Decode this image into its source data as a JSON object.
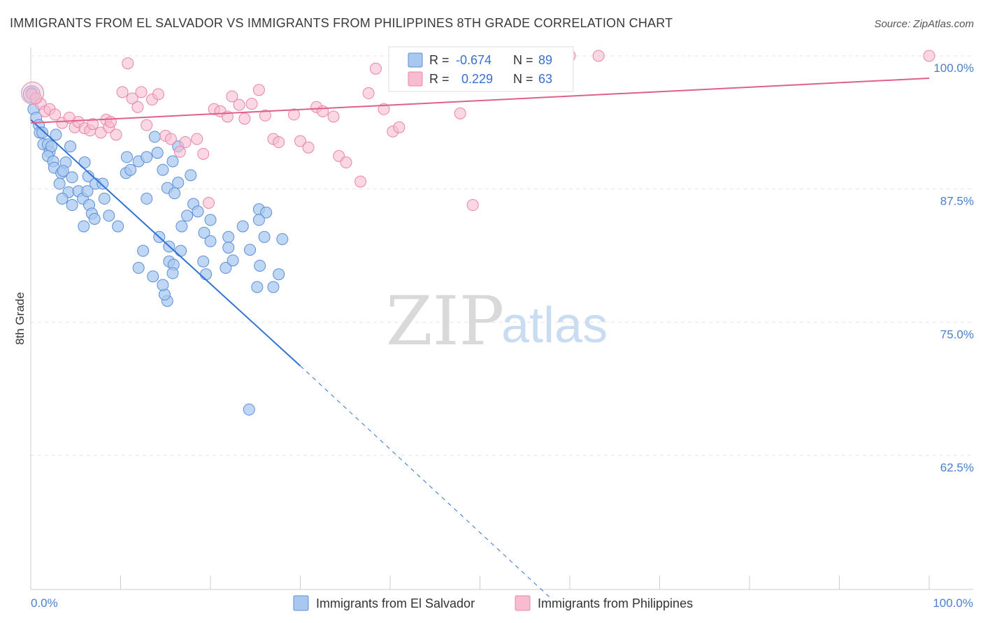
{
  "title": "IMMIGRANTS FROM EL SALVADOR VS IMMIGRANTS FROM PHILIPPINES 8TH GRADE CORRELATION CHART",
  "source": "Source: ZipAtlas.com",
  "watermark": {
    "zip": "ZIP",
    "atlas": "atlas"
  },
  "colors": {
    "blue_fill": "#a9c8f0",
    "blue_stroke": "#5b8fd6",
    "blue_line": "#2f72d2",
    "pink_fill": "#f7bcd0",
    "pink_stroke": "#e886a8",
    "pink_line": "#e0608b",
    "tick_text": "#4a7fd0",
    "grid": "#e3e3e3"
  },
  "legend": {
    "rows": [
      {
        "r_label": "R =",
        "r_value": "-0.674",
        "n_label": "N =",
        "n_value": "89"
      },
      {
        "r_label": "R =",
        "r_value": "0.229",
        "n_label": "N =",
        "n_value": "63"
      }
    ]
  },
  "bottom_legend": [
    "Immigrants from El Salvador",
    "Immigrants from Philippines"
  ],
  "chart_data": {
    "type": "scatter",
    "title": "IMMIGRANTS FROM EL SALVADOR VS IMMIGRANTS FROM PHILIPPINES 8TH GRADE CORRELATION CHART",
    "xlabel": "",
    "ylabel": "8th Grade",
    "xlim": [
      0,
      100
    ],
    "ylim": [
      51,
      102
    ],
    "x_tick_labels": [
      "0.0%",
      "100.0%"
    ],
    "y_ticks": [
      62.5,
      75.0,
      87.5,
      100.0
    ],
    "y_tick_labels": [
      "62.5%",
      "75.0%",
      "87.5%",
      "100.0%"
    ],
    "grid": true,
    "legend_position": "top-center",
    "series": [
      {
        "name": "Immigrants from El Salvador",
        "color": "#a9c8f0",
        "trend": {
          "x": [
            0,
            30
          ],
          "y": [
            94.0,
            70.9
          ],
          "dashed_to": [
            58,
            49
          ]
        },
        "points": [
          [
            0.1,
            96.5
          ],
          [
            0.3,
            95.0
          ],
          [
            0.6,
            94.2
          ],
          [
            0.9,
            93.5
          ],
          [
            1.0,
            92.8
          ],
          [
            1.3,
            92.8
          ],
          [
            1.4,
            91.7
          ],
          [
            1.9,
            91.7
          ],
          [
            2.1,
            91.0
          ],
          [
            2.3,
            91.5
          ],
          [
            1.9,
            90.6
          ],
          [
            2.8,
            92.6
          ],
          [
            2.5,
            90.1
          ],
          [
            4.4,
            91.5
          ],
          [
            3.9,
            90.0
          ],
          [
            2.6,
            89.5
          ],
          [
            3.4,
            89.0
          ],
          [
            3.6,
            89.2
          ],
          [
            4.6,
            88.6
          ],
          [
            6.0,
            90.0
          ],
          [
            6.4,
            88.7
          ],
          [
            3.2,
            88.0
          ],
          [
            4.2,
            87.2
          ],
          [
            5.3,
            87.3
          ],
          [
            5.8,
            86.6
          ],
          [
            6.3,
            87.3
          ],
          [
            7.2,
            88.0
          ],
          [
            8.0,
            88.0
          ],
          [
            3.5,
            86.6
          ],
          [
            4.6,
            86.0
          ],
          [
            6.5,
            86.0
          ],
          [
            6.8,
            85.2
          ],
          [
            8.2,
            86.6
          ],
          [
            8.7,
            85.0
          ],
          [
            7.1,
            84.7
          ],
          [
            5.9,
            84.0
          ],
          [
            9.7,
            84.0
          ],
          [
            10.6,
            89.0
          ],
          [
            11.1,
            89.3
          ],
          [
            12.0,
            90.1
          ],
          [
            10.7,
            90.5
          ],
          [
            12.9,
            90.5
          ],
          [
            14.1,
            90.9
          ],
          [
            13.8,
            92.4
          ],
          [
            14.7,
            89.3
          ],
          [
            16.4,
            91.5
          ],
          [
            15.8,
            90.1
          ],
          [
            16.4,
            88.1
          ],
          [
            17.8,
            88.8
          ],
          [
            15.2,
            87.6
          ],
          [
            16.0,
            87.1
          ],
          [
            12.9,
            86.6
          ],
          [
            18.1,
            86.1
          ],
          [
            17.4,
            85.0
          ],
          [
            18.6,
            85.4
          ],
          [
            20.0,
            84.6
          ],
          [
            16.8,
            84.0
          ],
          [
            19.3,
            83.4
          ],
          [
            20.0,
            82.6
          ],
          [
            23.6,
            84.0
          ],
          [
            22.0,
            83.0
          ],
          [
            22.0,
            82.0
          ],
          [
            25.4,
            85.6
          ],
          [
            26.2,
            85.3
          ],
          [
            25.4,
            84.6
          ],
          [
            26.0,
            83.0
          ],
          [
            28.0,
            82.8
          ],
          [
            24.4,
            81.8
          ],
          [
            19.2,
            80.7
          ],
          [
            19.5,
            79.5
          ],
          [
            21.7,
            80.1
          ],
          [
            22.5,
            80.8
          ],
          [
            25.5,
            80.3
          ],
          [
            27.6,
            79.5
          ],
          [
            25.2,
            78.3
          ],
          [
            27.0,
            78.3
          ],
          [
            16.7,
            81.7
          ],
          [
            12.5,
            81.7
          ],
          [
            12.0,
            80.1
          ],
          [
            13.6,
            79.3
          ],
          [
            14.3,
            83.0
          ],
          [
            15.4,
            82.1
          ],
          [
            15.4,
            80.7
          ],
          [
            15.9,
            80.4
          ],
          [
            15.2,
            77.0
          ],
          [
            14.9,
            77.6
          ],
          [
            14.7,
            78.5
          ],
          [
            15.8,
            79.6
          ],
          [
            24.3,
            66.8
          ]
        ]
      },
      {
        "name": "Immigrants from Philippines",
        "color": "#f7bcd0",
        "trend": {
          "x": [
            0,
            100
          ],
          "y": [
            93.7,
            97.9
          ]
        },
        "points": [
          [
            0.1,
            96.4
          ],
          [
            0.6,
            96.0
          ],
          [
            1.1,
            95.5
          ],
          [
            1.6,
            94.8
          ],
          [
            2.1,
            95.0
          ],
          [
            2.7,
            94.5
          ],
          [
            3.5,
            93.7
          ],
          [
            4.3,
            94.2
          ],
          [
            4.9,
            93.3
          ],
          [
            5.3,
            93.8
          ],
          [
            6.0,
            93.2
          ],
          [
            6.6,
            93.0
          ],
          [
            6.9,
            93.6
          ],
          [
            7.8,
            92.8
          ],
          [
            8.4,
            94.0
          ],
          [
            8.7,
            93.3
          ],
          [
            8.9,
            93.8
          ],
          [
            9.5,
            92.6
          ],
          [
            10.2,
            96.6
          ],
          [
            10.8,
            99.3
          ],
          [
            11.3,
            96.0
          ],
          [
            11.9,
            95.2
          ],
          [
            12.3,
            96.6
          ],
          [
            12.9,
            93.5
          ],
          [
            13.5,
            95.9
          ],
          [
            14.2,
            96.4
          ],
          [
            15.0,
            92.5
          ],
          [
            15.6,
            92.2
          ],
          [
            16.6,
            91.0
          ],
          [
            17.2,
            91.9
          ],
          [
            18.5,
            92.2
          ],
          [
            19.2,
            90.8
          ],
          [
            19.8,
            86.2
          ],
          [
            20.4,
            95.0
          ],
          [
            21.1,
            94.8
          ],
          [
            21.9,
            94.3
          ],
          [
            22.4,
            96.2
          ],
          [
            23.2,
            95.4
          ],
          [
            23.8,
            94.1
          ],
          [
            24.6,
            95.5
          ],
          [
            25.4,
            96.8
          ],
          [
            26.1,
            94.4
          ],
          [
            27.0,
            92.2
          ],
          [
            27.6,
            91.9
          ],
          [
            29.3,
            94.5
          ],
          [
            30.0,
            92.0
          ],
          [
            30.9,
            91.4
          ],
          [
            31.8,
            95.2
          ],
          [
            32.5,
            94.8
          ],
          [
            33.7,
            94.3
          ],
          [
            34.3,
            90.6
          ],
          [
            35.1,
            90.0
          ],
          [
            36.7,
            88.2
          ],
          [
            37.6,
            96.5
          ],
          [
            38.4,
            98.8
          ],
          [
            39.3,
            95.0
          ],
          [
            40.3,
            92.9
          ],
          [
            41.0,
            93.3
          ],
          [
            47.8,
            94.6
          ],
          [
            49.2,
            86.0
          ],
          [
            60.0,
            100.0
          ],
          [
            63.2,
            100.0
          ],
          [
            100.0,
            100.0
          ]
        ]
      }
    ]
  }
}
